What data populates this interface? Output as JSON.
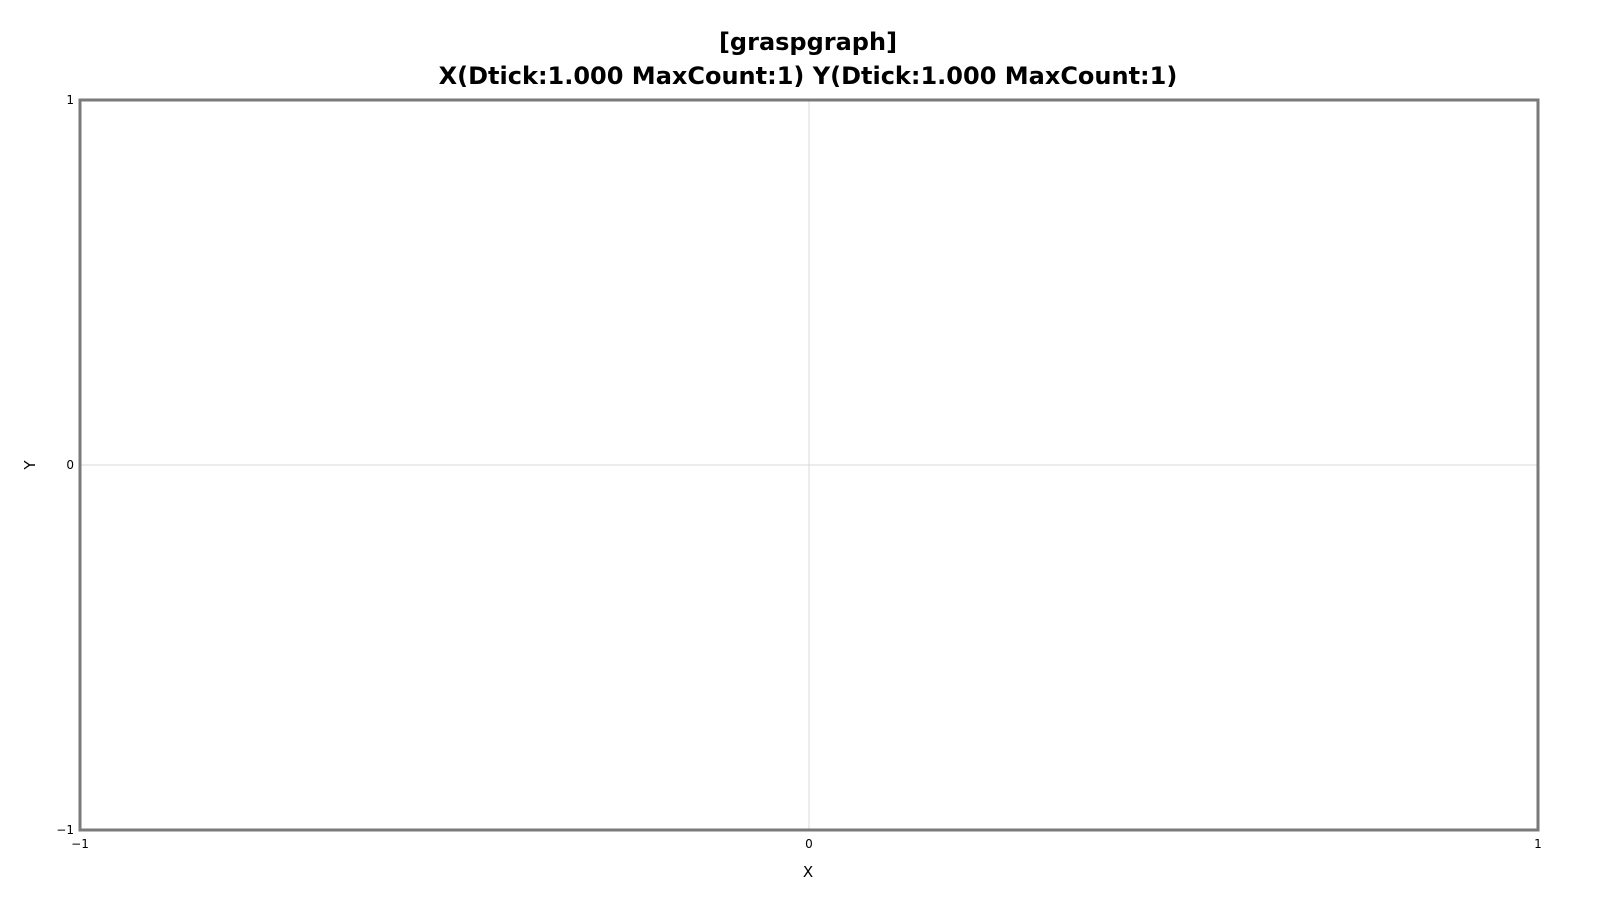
{
  "chart_data": {
    "type": "scatter",
    "title": "[graspgraph]",
    "subtitle": "X(Dtick:1.000 MaxCount:1) Y(Dtick:1.000 MaxCount:1)",
    "xlabel": "X",
    "ylabel": "Y",
    "xlim": [
      -1,
      1
    ],
    "ylim": [
      -1,
      1
    ],
    "xticks": [
      -1,
      0,
      1
    ],
    "yticks": [
      -1,
      0,
      1
    ],
    "xtick_labels": [
      "−1",
      "0",
      "1"
    ],
    "ytick_labels": [
      "−1",
      "0",
      "1"
    ],
    "grid": true,
    "series": [],
    "colors": {
      "frame": "#7a7a7a",
      "grid": "#d9d9d9",
      "text": "#000000",
      "background": "#ffffff"
    }
  }
}
